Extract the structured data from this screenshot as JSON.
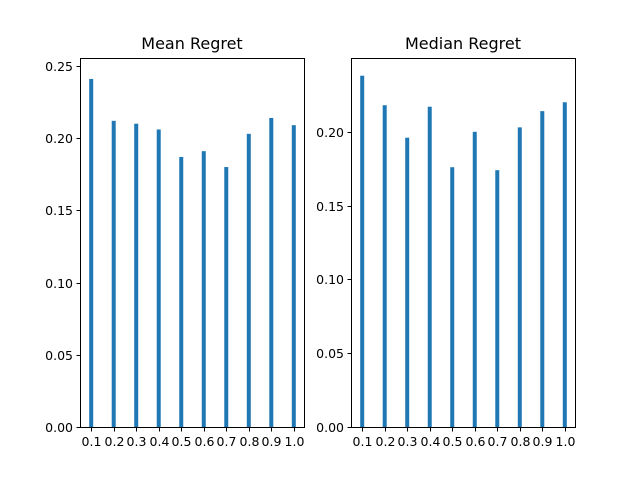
{
  "chart_data": [
    {
      "type": "bar",
      "title": "Mean Regret",
      "xlabel": "",
      "ylabel": "",
      "categories": [
        "0.1",
        "0.2",
        "0.3",
        "0.4",
        "0.5",
        "0.6",
        "0.7",
        "0.8",
        "0.9",
        "1.0"
      ],
      "values": [
        0.241,
        0.212,
        0.21,
        0.206,
        0.187,
        0.191,
        0.18,
        0.203,
        0.214,
        0.209
      ],
      "ylim": [
        0,
        0.2555
      ],
      "yticks": [
        "0.00",
        "0.05",
        "0.10",
        "0.15",
        "0.20",
        "0.25"
      ],
      "grid": false,
      "color": "#1f77b4"
    },
    {
      "type": "bar",
      "title": "Median Regret",
      "xlabel": "",
      "ylabel": "",
      "categories": [
        "0.1",
        "0.2",
        "0.3",
        "0.4",
        "0.5",
        "0.6",
        "0.7",
        "0.8",
        "0.9",
        "1.0"
      ],
      "values": [
        0.238,
        0.218,
        0.196,
        0.217,
        0.176,
        0.2,
        0.174,
        0.203,
        0.214,
        0.22
      ],
      "ylim": [
        0,
        0.25
      ],
      "yticks": [
        "0.00",
        "0.05",
        "0.10",
        "0.15",
        "0.20"
      ],
      "grid": false,
      "color": "#1f77b4"
    }
  ]
}
